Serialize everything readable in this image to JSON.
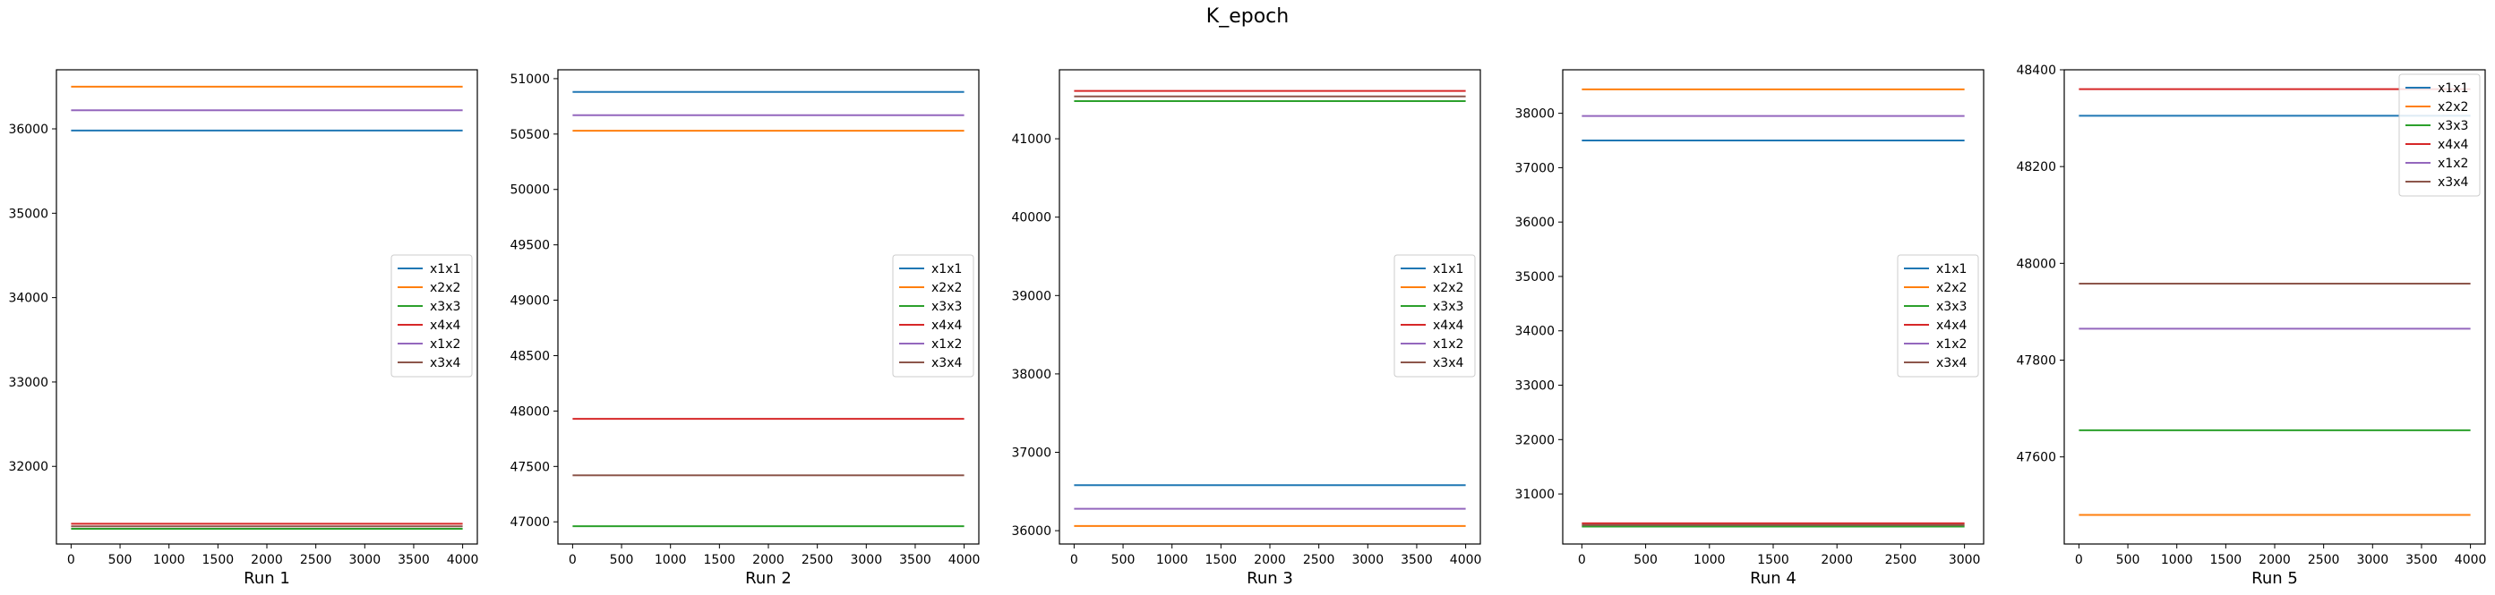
{
  "suptitle": "K_epoch",
  "series_colors": {
    "x1x1": "#1f77b4",
    "x2x2": "#ff7f0e",
    "x3x3": "#2ca02c",
    "x4x4": "#d62728",
    "x1x2": "#9467bd",
    "x3x4": "#8c564b"
  },
  "chart_data": [
    {
      "type": "line",
      "xlabel": "Run 1",
      "xlim": [
        -150,
        4150
      ],
      "ylim": [
        31080,
        36700
      ],
      "xticks": [
        0,
        500,
        1000,
        1500,
        2000,
        2500,
        3000,
        3500,
        4000
      ],
      "yticks": [
        32000,
        33000,
        34000,
        35000,
        36000
      ],
      "legend": "center-right",
      "x_range": [
        0,
        4000
      ],
      "series": [
        {
          "name": "x1x1",
          "value": 35980
        },
        {
          "name": "x2x2",
          "value": 36500
        },
        {
          "name": "x3x3",
          "value": 31260
        },
        {
          "name": "x4x4",
          "value": 31320
        },
        {
          "name": "x1x2",
          "value": 36220
        },
        {
          "name": "x3x4",
          "value": 31290
        }
      ]
    },
    {
      "type": "line",
      "xlabel": "Run 2",
      "xlim": [
        -150,
        4150
      ],
      "ylim": [
        46800,
        51080
      ],
      "xticks": [
        0,
        500,
        1000,
        1500,
        2000,
        2500,
        3000,
        3500,
        4000
      ],
      "yticks": [
        47000,
        47500,
        48000,
        48500,
        49000,
        49500,
        50000,
        50500,
        51000
      ],
      "legend": "center-right",
      "x_range": [
        0,
        4000
      ],
      "series": [
        {
          "name": "x1x1",
          "value": 50880
        },
        {
          "name": "x2x2",
          "value": 50530
        },
        {
          "name": "x3x3",
          "value": 46960
        },
        {
          "name": "x4x4",
          "value": 47930
        },
        {
          "name": "x1x2",
          "value": 50670
        },
        {
          "name": "x3x4",
          "value": 47420
        }
      ]
    },
    {
      "type": "line",
      "xlabel": "Run 3",
      "xlim": [
        -150,
        4150
      ],
      "ylim": [
        35830,
        41880
      ],
      "xticks": [
        0,
        500,
        1000,
        1500,
        2000,
        2500,
        3000,
        3500,
        4000
      ],
      "yticks": [
        36000,
        37000,
        38000,
        39000,
        40000,
        41000
      ],
      "legend": "center-right",
      "x_range": [
        0,
        4000
      ],
      "series": [
        {
          "name": "x1x1",
          "value": 36580
        },
        {
          "name": "x2x2",
          "value": 36060
        },
        {
          "name": "x3x3",
          "value": 41480
        },
        {
          "name": "x4x4",
          "value": 41610
        },
        {
          "name": "x1x2",
          "value": 36280
        },
        {
          "name": "x3x4",
          "value": 41540
        }
      ]
    },
    {
      "type": "line",
      "xlabel": "Run 4",
      "xlim": [
        -150,
        3150
      ],
      "ylim": [
        30080,
        38800
      ],
      "xticks": [
        0,
        500,
        1000,
        1500,
        2000,
        2500,
        3000
      ],
      "yticks": [
        31000,
        32000,
        33000,
        34000,
        35000,
        36000,
        37000,
        38000
      ],
      "legend": "center-right",
      "x_range": [
        0,
        3000
      ],
      "series": [
        {
          "name": "x1x1",
          "value": 37500
        },
        {
          "name": "x2x2",
          "value": 38440
        },
        {
          "name": "x3x3",
          "value": 30400
        },
        {
          "name": "x4x4",
          "value": 30460
        },
        {
          "name": "x1x2",
          "value": 37950
        },
        {
          "name": "x3x4",
          "value": 30430
        }
      ]
    },
    {
      "type": "line",
      "xlabel": "Run 5",
      "xlim": [
        -150,
        4150
      ],
      "ylim": [
        47420,
        48400
      ],
      "xticks": [
        0,
        500,
        1000,
        1500,
        2000,
        2500,
        3000,
        3500,
        4000
      ],
      "yticks": [
        47600,
        47800,
        48000,
        48200,
        48400
      ],
      "legend": "top-right",
      "x_range": [
        0,
        4000
      ],
      "series": [
        {
          "name": "x1x1",
          "value": 48305
        },
        {
          "name": "x2x2",
          "value": 47480
        },
        {
          "name": "x3x3",
          "value": 47655
        },
        {
          "name": "x4x4",
          "value": 48360
        },
        {
          "name": "x1x2",
          "value": 47865
        },
        {
          "name": "x3x4",
          "value": 47958
        }
      ]
    }
  ]
}
